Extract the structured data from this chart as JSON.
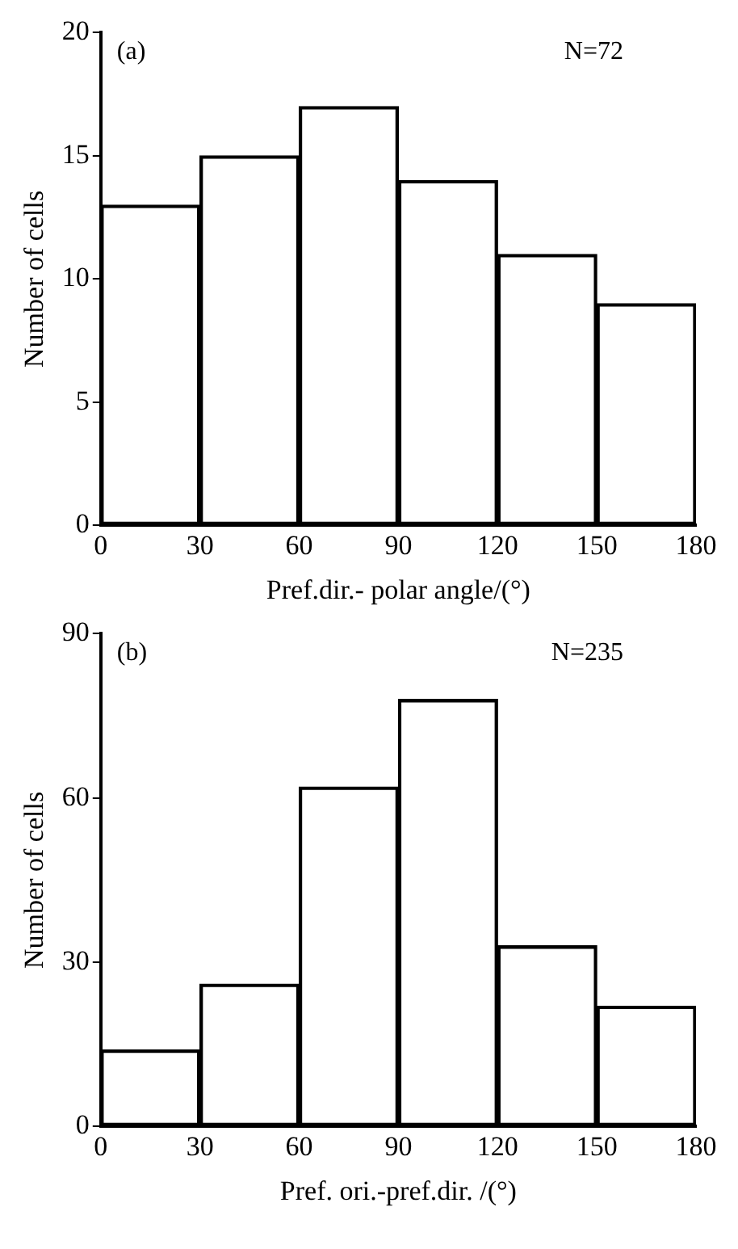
{
  "chart_data": [
    {
      "type": "histogram",
      "xlabel": "Pref.dir.- polar angle/(°)",
      "ylabel": "Number of cells",
      "annotations": [
        "(a)",
        "N=72"
      ],
      "bins": [
        0,
        30,
        60,
        90,
        120,
        150,
        180
      ],
      "values": [
        13,
        15,
        17,
        14,
        11,
        9
      ],
      "color": "#000000",
      "xlim": [
        0,
        180
      ],
      "xticks": [
        0,
        30,
        60,
        90,
        120,
        150,
        180
      ],
      "ylim": [
        0,
        20
      ],
      "yticks": [
        0,
        5,
        10,
        15,
        20
      ]
    },
    {
      "type": "histogram",
      "xlabel": "Pref. ori.-pref.dir. /(°)",
      "ylabel": "Number of cells",
      "annotations": [
        "(b)",
        "N=235"
      ],
      "bins": [
        0,
        30,
        60,
        90,
        120,
        150,
        180
      ],
      "values": [
        14,
        26,
        62,
        78,
        33,
        22
      ],
      "color": "#000000",
      "xlim": [
        0,
        180
      ],
      "xticks": [
        0,
        30,
        60,
        90,
        120,
        150,
        180
      ],
      "ylim": [
        0,
        90
      ],
      "yticks": [
        0,
        30,
        60,
        90
      ]
    }
  ]
}
